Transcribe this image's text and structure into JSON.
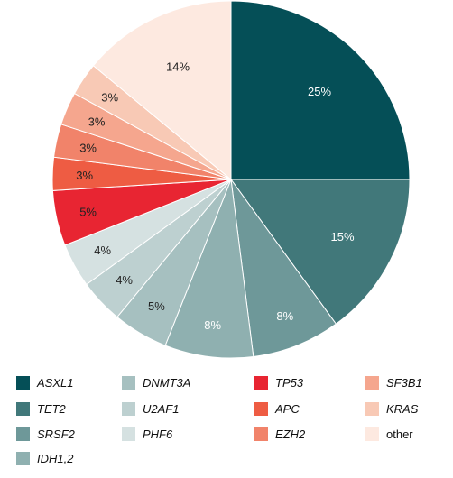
{
  "chart_data": {
    "type": "pie",
    "title": "",
    "slices": [
      {
        "label": "ASXL1",
        "value": 25,
        "value_label": "25%",
        "color": "#054F57"
      },
      {
        "label": "TET2",
        "value": 15,
        "value_label": "15%",
        "color": "#41787A"
      },
      {
        "label": "SRSF2",
        "value": 8,
        "value_label": "8%",
        "color": "#6E9899"
      },
      {
        "label": "IDH1,2",
        "value": 8,
        "value_label": "8%",
        "color": "#8FB0B0"
      },
      {
        "label": "DNMT3A",
        "value": 5,
        "value_label": "5%",
        "color": "#A6C0C0"
      },
      {
        "label": "U2AF1",
        "value": 4,
        "value_label": "4%",
        "color": "#BDD0D0"
      },
      {
        "label": "PHF6",
        "value": 4,
        "value_label": "4%",
        "color": "#D5E1E1"
      },
      {
        "label": "TP53",
        "value": 5,
        "value_label": "5%",
        "color": "#E82532"
      },
      {
        "label": "APC",
        "value": 3,
        "value_label": "3%",
        "color": "#EE5C43"
      },
      {
        "label": "EZH2",
        "value": 3,
        "value_label": "3%",
        "color": "#F1836A"
      },
      {
        "label": "SF3B1",
        "value": 3,
        "value_label": "3%",
        "color": "#F5A68E"
      },
      {
        "label": "KRAS",
        "value": 3,
        "value_label": "3%",
        "color": "#F8C9B5"
      },
      {
        "label": "other",
        "value": 14,
        "value_label": "14%",
        "color": "#FDE9E0"
      }
    ],
    "label_colors": {
      "dark": "#FFFFFF",
      "light": "#222222"
    },
    "legend_placement": "bottom",
    "legend_italic_except": [
      "other"
    ]
  }
}
